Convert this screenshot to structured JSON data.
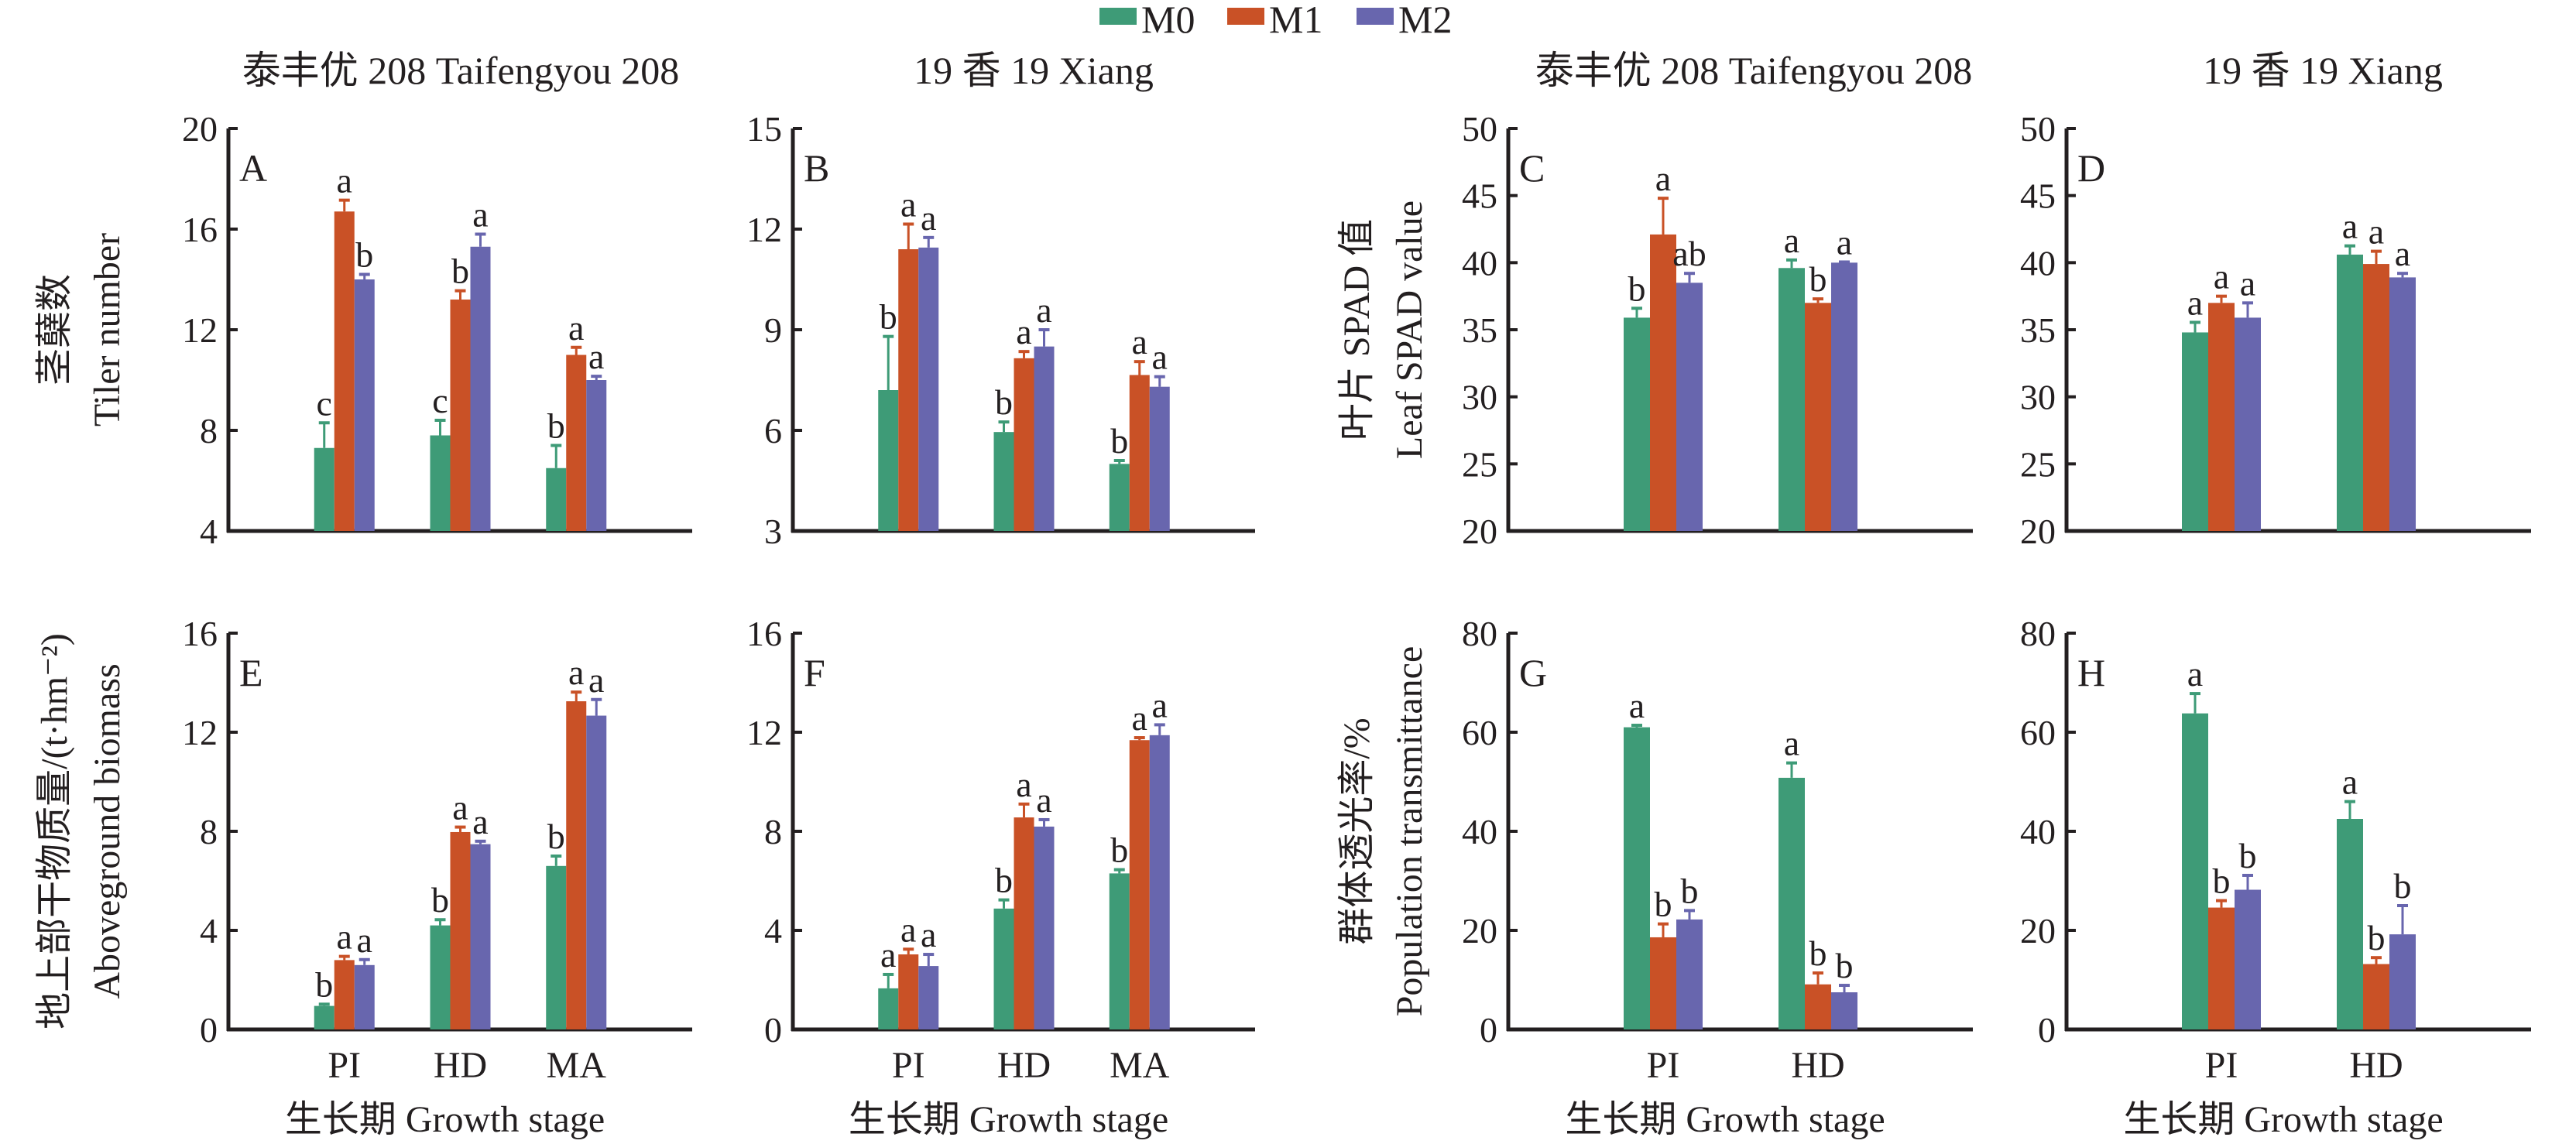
{
  "legend": {
    "items": [
      {
        "label": "M0",
        "color": "#3e9b77"
      },
      {
        "label": "M1",
        "color": "#c95126"
      },
      {
        "label": "M2",
        "color": "#6866ae"
      }
    ]
  },
  "column_titles": [
    "泰丰优 208 Taifengyou 208",
    "19 香 19 Xiang",
    "泰丰优 208 Taifengyou 208",
    "19 香 19 Xiang"
  ],
  "x_axis_title": "生长期 Growth stage",
  "chart_data": [
    {
      "id": "A",
      "type": "bar",
      "title": "泰丰优 208 Taifengyou 208",
      "ylabel_cn": "茎蘖数",
      "ylabel_en": "Tiler number",
      "xlabel": "",
      "categories": [
        "PI",
        "HD",
        "MA"
      ],
      "show_categories": false,
      "ylim": [
        4,
        20
      ],
      "yticks": [
        4,
        8,
        12,
        16,
        20
      ],
      "grid": false,
      "series": [
        {
          "name": "M0",
          "values": [
            7.3,
            7.8,
            6.5
          ],
          "err": [
            1.0,
            0.6,
            0.9
          ],
          "sig": [
            "c",
            "c",
            "b"
          ]
        },
        {
          "name": "M1",
          "values": [
            16.7,
            13.2,
            11.0
          ],
          "err": [
            0.45,
            0.35,
            0.3
          ],
          "sig": [
            "a",
            "b",
            "a"
          ]
        },
        {
          "name": "M2",
          "values": [
            14.0,
            15.3,
            10.0
          ],
          "err": [
            0.2,
            0.5,
            0.15
          ],
          "sig": [
            "b",
            "a",
            "a"
          ]
        }
      ]
    },
    {
      "id": "B",
      "type": "bar",
      "title": "19 香 19 Xiang",
      "ylabel_cn": "",
      "ylabel_en": "",
      "xlabel": "",
      "categories": [
        "PI",
        "HD",
        "MA"
      ],
      "show_categories": false,
      "ylim": [
        3,
        15
      ],
      "yticks": [
        3,
        6,
        9,
        12,
        15
      ],
      "grid": false,
      "series": [
        {
          "name": "M0",
          "values": [
            7.2,
            5.95,
            5.0
          ],
          "err": [
            1.6,
            0.3,
            0.1
          ],
          "sig": [
            "b",
            "b",
            "b"
          ]
        },
        {
          "name": "M1",
          "values": [
            11.4,
            8.15,
            7.65
          ],
          "err": [
            0.75,
            0.2,
            0.4
          ],
          "sig": [
            "a",
            "a",
            "a"
          ]
        },
        {
          "name": "M2",
          "values": [
            11.45,
            8.5,
            7.3
          ],
          "err": [
            0.3,
            0.5,
            0.3
          ],
          "sig": [
            "a",
            "a",
            "a"
          ]
        }
      ]
    },
    {
      "id": "C",
      "type": "bar",
      "title": "泰丰优 208 Taifengyou 208",
      "ylabel_cn": "叶片 SPAD 值",
      "ylabel_en": "Leaf SPAD value",
      "xlabel": "",
      "categories": [
        "PI",
        "HD"
      ],
      "show_categories": false,
      "ylim": [
        20,
        50
      ],
      "yticks": [
        20,
        25,
        30,
        35,
        40,
        45,
        50
      ],
      "grid": false,
      "series": [
        {
          "name": "M0",
          "values": [
            35.9,
            39.6
          ],
          "err": [
            0.7,
            0.6
          ],
          "sig": [
            "b",
            "a"
          ]
        },
        {
          "name": "M1",
          "values": [
            42.1,
            37.0
          ],
          "err": [
            2.7,
            0.3
          ],
          "sig": [
            "a",
            "b"
          ]
        },
        {
          "name": "M2",
          "values": [
            38.5,
            40.0
          ],
          "err": [
            0.7,
            0.05
          ],
          "sig": [
            "ab",
            "a"
          ]
        }
      ]
    },
    {
      "id": "D",
      "type": "bar",
      "title": "19 香 19 Xiang",
      "ylabel_cn": "",
      "ylabel_en": "",
      "xlabel": "",
      "categories": [
        "PI",
        "HD"
      ],
      "show_categories": false,
      "ylim": [
        20,
        50
      ],
      "yticks": [
        20,
        25,
        30,
        35,
        40,
        45,
        50
      ],
      "grid": false,
      "series": [
        {
          "name": "M0",
          "values": [
            34.8,
            40.6
          ],
          "err": [
            0.75,
            0.65
          ],
          "sig": [
            "a",
            "a"
          ]
        },
        {
          "name": "M1",
          "values": [
            37.0,
            39.9
          ],
          "err": [
            0.5,
            0.95
          ],
          "sig": [
            "a",
            "a"
          ]
        },
        {
          "name": "M2",
          "values": [
            35.9,
            38.9
          ],
          "err": [
            1.1,
            0.3
          ],
          "sig": [
            "a",
            "a"
          ]
        }
      ]
    },
    {
      "id": "E",
      "type": "bar",
      "title": "",
      "ylabel_cn": "地上部干物质量/(t·hm⁻²)",
      "ylabel_en": "Aboveground biomass",
      "xlabel": "生长期 Growth stage",
      "categories": [
        "PI",
        "HD",
        "MA"
      ],
      "show_categories": true,
      "ylim": [
        0,
        16
      ],
      "yticks": [
        0,
        4,
        8,
        12,
        16
      ],
      "grid": false,
      "series": [
        {
          "name": "M0",
          "values": [
            0.95,
            4.2,
            6.6
          ],
          "err": [
            0.07,
            0.23,
            0.4
          ],
          "sig": [
            "b",
            "b",
            "b"
          ]
        },
        {
          "name": "M1",
          "values": [
            2.8,
            7.97,
            13.25
          ],
          "err": [
            0.15,
            0.2,
            0.37
          ],
          "sig": [
            "a",
            "a",
            "a"
          ]
        },
        {
          "name": "M2",
          "values": [
            2.6,
            7.48,
            12.67
          ],
          "err": [
            0.22,
            0.12,
            0.65
          ],
          "sig": [
            "a",
            "a",
            "a"
          ]
        }
      ]
    },
    {
      "id": "F",
      "type": "bar",
      "title": "",
      "ylabel_cn": "",
      "ylabel_en": "",
      "xlabel": "生长期 Growth stage",
      "categories": [
        "PI",
        "HD",
        "MA"
      ],
      "show_categories": true,
      "ylim": [
        0,
        16
      ],
      "yticks": [
        0,
        4,
        8,
        12,
        16
      ],
      "grid": false,
      "series": [
        {
          "name": "M0",
          "values": [
            1.66,
            4.88,
            6.3
          ],
          "err": [
            0.56,
            0.35,
            0.15
          ],
          "sig": [
            "a",
            "b",
            "b"
          ]
        },
        {
          "name": "M1",
          "values": [
            3.03,
            8.56,
            11.68
          ],
          "err": [
            0.21,
            0.54,
            0.1
          ],
          "sig": [
            "a",
            "a",
            "a"
          ]
        },
        {
          "name": "M2",
          "values": [
            2.56,
            8.19,
            11.88
          ],
          "err": [
            0.47,
            0.28,
            0.42
          ],
          "sig": [
            "a",
            "a",
            "a"
          ]
        }
      ]
    },
    {
      "id": "G",
      "type": "bar",
      "title": "",
      "ylabel_cn": "群体透光率/%",
      "ylabel_en": "Population transmittance",
      "xlabel": "生长期 Growth stage",
      "categories": [
        "PI",
        "HD"
      ],
      "show_categories": true,
      "ylim": [
        0,
        80
      ],
      "yticks": [
        0,
        20,
        40,
        60,
        80
      ],
      "grid": false,
      "series": [
        {
          "name": "M0",
          "values": [
            61.0,
            50.8
          ],
          "err": [
            0.4,
            3.0
          ],
          "sig": [
            "a",
            "a"
          ]
        },
        {
          "name": "M1",
          "values": [
            18.6,
            9.1
          ],
          "err": [
            2.7,
            2.3
          ],
          "sig": [
            "b",
            "b"
          ]
        },
        {
          "name": "M2",
          "values": [
            22.2,
            7.5
          ],
          "err": [
            1.8,
            1.4
          ],
          "sig": [
            "b",
            "b"
          ]
        }
      ]
    },
    {
      "id": "H",
      "type": "bar",
      "title": "",
      "ylabel_cn": "",
      "ylabel_en": "",
      "xlabel": "生长期 Growth stage",
      "categories": [
        "PI",
        "HD"
      ],
      "show_categories": true,
      "ylim": [
        0,
        80
      ],
      "yticks": [
        0,
        20,
        40,
        60,
        80
      ],
      "grid": false,
      "series": [
        {
          "name": "M0",
          "values": [
            63.8,
            42.5
          ],
          "err": [
            4.0,
            3.5
          ],
          "sig": [
            "a",
            "a"
          ]
        },
        {
          "name": "M1",
          "values": [
            24.6,
            13.2
          ],
          "err": [
            1.4,
            1.3
          ],
          "sig": [
            "b",
            "b"
          ]
        },
        {
          "name": "M2",
          "values": [
            28.2,
            19.2
          ],
          "err": [
            2.9,
            5.8
          ],
          "sig": [
            "b",
            "b"
          ]
        }
      ]
    }
  ]
}
